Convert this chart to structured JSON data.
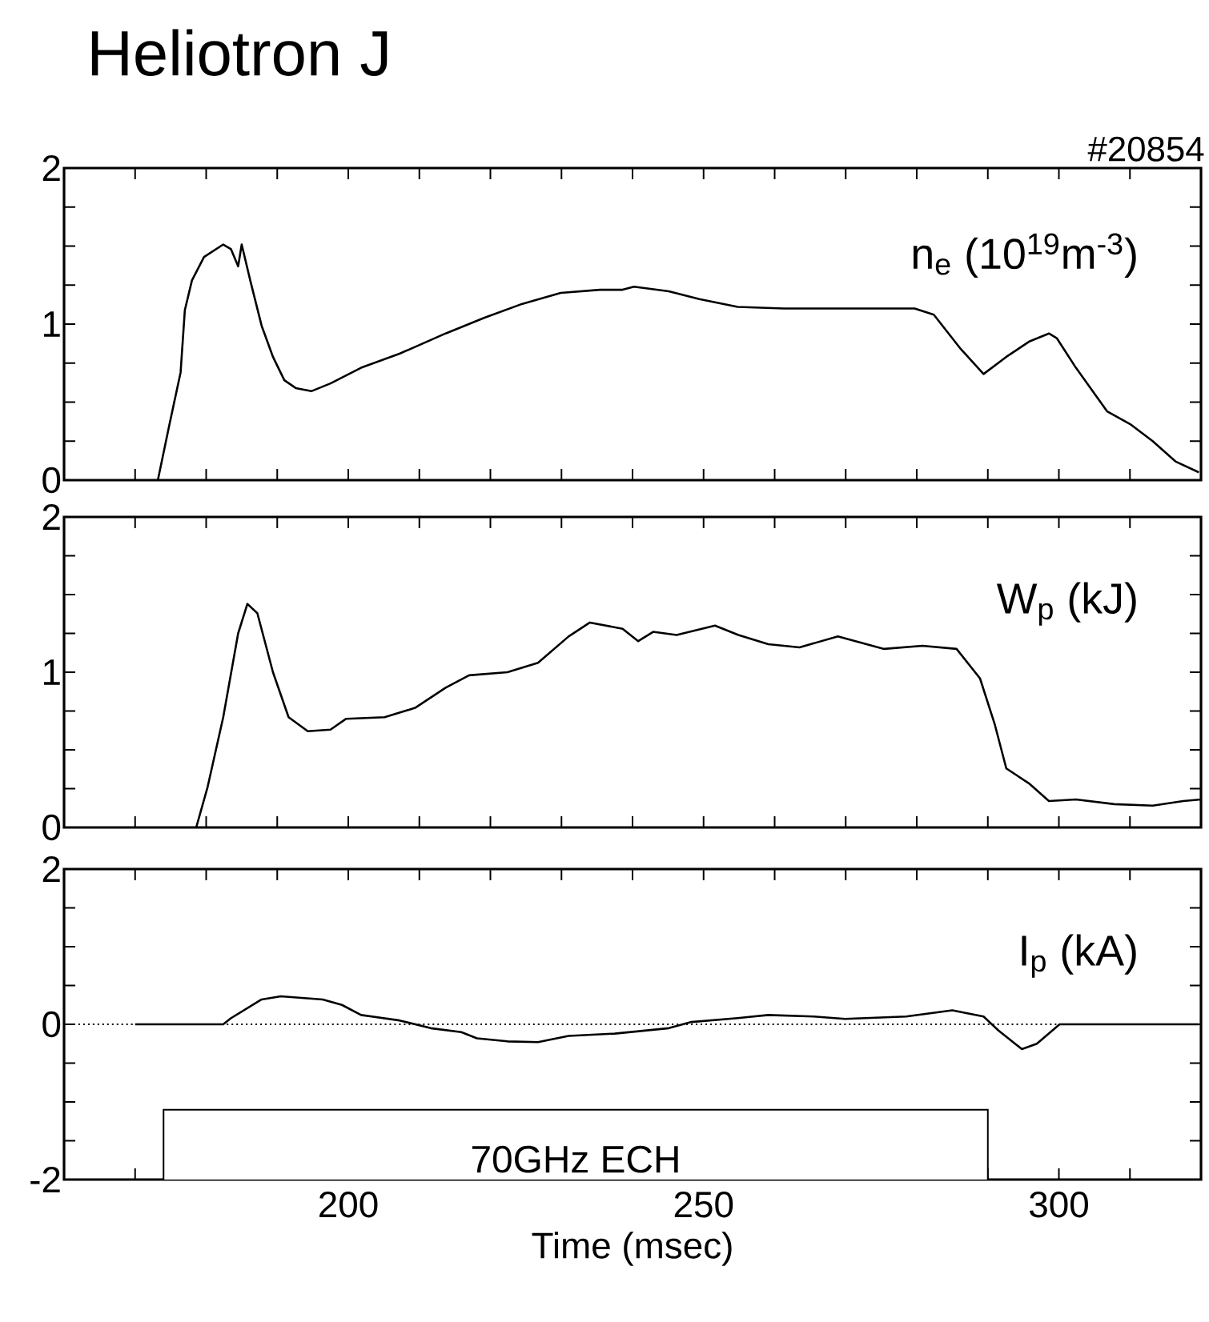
{
  "chart_data": [
    {
      "type": "line",
      "title": "Heliotron J",
      "annotations": [
        "#20854"
      ],
      "xlim": [
        160,
        320
      ],
      "ylim": [
        0,
        2
      ],
      "tick_labels": "y",
      "xticks": [
        {
          "value": 160,
          "label": null
        },
        {
          "value": 170,
          "label": null
        },
        {
          "value": 180,
          "label": null
        },
        {
          "value": 190,
          "label": null
        },
        {
          "value": 200,
          "label": null
        },
        {
          "value": 210,
          "label": null
        },
        {
          "value": 220,
          "label": null
        },
        {
          "value": 230,
          "label": null
        },
        {
          "value": 240,
          "label": null
        },
        {
          "value": 250,
          "label": null
        },
        {
          "value": 260,
          "label": null
        },
        {
          "value": 270,
          "label": null
        },
        {
          "value": 280,
          "label": null
        },
        {
          "value": 290,
          "label": null
        },
        {
          "value": 300,
          "label": null
        },
        {
          "value": 310,
          "label": null
        },
        {
          "value": 320,
          "label": null
        }
      ],
      "yticks": [
        0,
        {
          "value": 0.25,
          "label": null
        },
        {
          "value": 0.5,
          "label": null
        },
        {
          "value": 0.75,
          "label": null
        },
        1,
        {
          "value": 1.25,
          "label": null
        },
        {
          "value": 1.5,
          "label": null
        },
        {
          "value": 1.75,
          "label": null
        },
        2
      ],
      "series": [
        {
          "name": "n$_{e}$ (10$^{19}$m$^{-3}$)",
          "color": "#000000",
          "x": [
            173.2,
            174.8,
            176.4,
            177,
            178,
            179.7,
            182.4,
            183.5,
            184.5,
            185,
            186.2,
            187.8,
            189.4,
            191,
            192.6,
            194.8,
            197.5,
            201.8,
            207.2,
            213.7,
            219.1,
            224.5,
            229.9,
            235.4,
            238.6,
            240.2,
            245.1,
            249.4,
            254.8,
            261.3,
            269.9,
            279.7,
            282.4,
            286.2,
            289.4,
            292.6,
            295.9,
            298.6,
            299.7,
            302.4,
            306.8,
            310,
            313.2,
            316.4,
            319.7
          ],
          "values": [
            0,
            0.35,
            0.69,
            1.09,
            1.28,
            1.43,
            1.51,
            1.48,
            1.37,
            1.51,
            1.28,
            0.99,
            0.79,
            0.64,
            0.59,
            0.57,
            0.62,
            0.72,
            0.81,
            0.94,
            1.04,
            1.13,
            1.2,
            1.22,
            1.22,
            1.24,
            1.21,
            1.16,
            1.11,
            1.1,
            1.1,
            1.1,
            1.06,
            0.84,
            0.68,
            0.79,
            0.89,
            0.94,
            0.91,
            0.72,
            0.44,
            0.36,
            0.25,
            0.12,
            0.05
          ]
        }
      ]
    },
    {
      "type": "line",
      "xlim": [
        160,
        320
      ],
      "ylim": [
        0,
        2
      ],
      "tick_labels": "y",
      "xticks": [
        {
          "value": 160,
          "label": null
        },
        {
          "value": 170,
          "label": null
        },
        {
          "value": 180,
          "label": null
        },
        {
          "value": 190,
          "label": null
        },
        {
          "value": 200,
          "label": null
        },
        {
          "value": 210,
          "label": null
        },
        {
          "value": 220,
          "label": null
        },
        {
          "value": 230,
          "label": null
        },
        {
          "value": 240,
          "label": null
        },
        {
          "value": 250,
          "label": null
        },
        {
          "value": 260,
          "label": null
        },
        {
          "value": 270,
          "label": null
        },
        {
          "value": 280,
          "label": null
        },
        {
          "value": 290,
          "label": null
        },
        {
          "value": 300,
          "label": null
        },
        {
          "value": 310,
          "label": null
        },
        {
          "value": 320,
          "label": null
        }
      ],
      "yticks": [
        0,
        {
          "value": 0.25,
          "label": null
        },
        {
          "value": 0.5,
          "label": null
        },
        {
          "value": 0.75,
          "label": null
        },
        1,
        {
          "value": 1.25,
          "label": null
        },
        {
          "value": 1.5,
          "label": null
        },
        {
          "value": 1.75,
          "label": null
        },
        2
      ],
      "series": [
        {
          "name": "W$_{p}$ (kJ)",
          "color": "#000000",
          "x": [
            178.6,
            180.2,
            182.4,
            184.5,
            185.8,
            187.2,
            189.4,
            191.6,
            194.3,
            197.5,
            199.7,
            205.1,
            209.4,
            213.7,
            217,
            222.4,
            226.7,
            231,
            234,
            238.6,
            240.8,
            242.9,
            246.2,
            251.6,
            254.9,
            259.1,
            263.5,
            268.9,
            275.4,
            280.8,
            285.6,
            288.9,
            291,
            292.6,
            295.9,
            298.6,
            302.4,
            307.8,
            313.2,
            317.5,
            320
          ],
          "values": [
            0,
            0.26,
            0.71,
            1.25,
            1.44,
            1.38,
            1.0,
            0.71,
            0.62,
            0.63,
            0.7,
            0.71,
            0.77,
            0.9,
            0.98,
            1.0,
            1.06,
            1.23,
            1.32,
            1.28,
            1.2,
            1.26,
            1.24,
            1.3,
            1.24,
            1.18,
            1.16,
            1.23,
            1.15,
            1.17,
            1.15,
            0.96,
            0.66,
            0.38,
            0.28,
            0.17,
            0.18,
            0.15,
            0.14,
            0.17,
            0.18
          ]
        }
      ]
    },
    {
      "type": "line",
      "xlabel": "Time (msec)",
      "xlim": [
        160,
        320
      ],
      "ylim": [
        -2,
        2
      ],
      "xticks": [
        {
          "value": 160,
          "label": null
        },
        {
          "value": 170,
          "label": null
        },
        {
          "value": 180,
          "label": null
        },
        {
          "value": 190,
          "label": null
        },
        200,
        {
          "value": 210,
          "label": null
        },
        {
          "value": 220,
          "label": null
        },
        {
          "value": 230,
          "label": null
        },
        {
          "value": 240,
          "label": null
        },
        250,
        {
          "value": 260,
          "label": null
        },
        {
          "value": 270,
          "label": null
        },
        {
          "value": 280,
          "label": null
        },
        {
          "value": 290,
          "label": null
        },
        300,
        {
          "value": 310,
          "label": null
        },
        {
          "value": 320,
          "label": null
        }
      ],
      "yticks": [
        -2,
        {
          "value": -1.5,
          "label": null
        },
        {
          "value": -1,
          "label": null
        },
        {
          "value": -0.5,
          "label": null
        },
        0,
        {
          "value": 0.5,
          "label": null
        },
        {
          "value": 1,
          "label": null
        },
        {
          "value": 1.5,
          "label": null
        },
        2
      ],
      "ref_lines": [
        {
          "axis": "y",
          "value": 0,
          "line_style": "dotted"
        }
      ],
      "bands": [
        {
          "axis": "x",
          "from": 174,
          "to": 290,
          "label": "70GHz ECH",
          "color": "#ffffff"
        }
      ],
      "series": [
        {
          "name": "I$_{p}$ (kA)",
          "color": "#000000",
          "x": [
            170,
            182.4,
            183.5,
            187.8,
            190.5,
            196.4,
            199.1,
            201.8,
            207.2,
            211.6,
            215.9,
            218.1,
            222.4,
            226.7,
            231,
            237.5,
            245.1,
            248.3,
            254.8,
            259.1,
            265.5,
            269.9,
            278.5,
            285,
            289.4,
            291.5,
            294.8,
            296.9,
            300.1,
            319.7
          ],
          "values": [
            0,
            0,
            0.08,
            0.32,
            0.36,
            0.32,
            0.25,
            0.12,
            0.05,
            -0.05,
            -0.1,
            -0.18,
            -0.22,
            -0.23,
            -0.15,
            -0.12,
            -0.05,
            0.03,
            0.08,
            0.12,
            0.1,
            0.07,
            0.1,
            0.18,
            0.1,
            -0.08,
            -0.32,
            -0.25,
            0,
            0
          ]
        }
      ]
    }
  ]
}
